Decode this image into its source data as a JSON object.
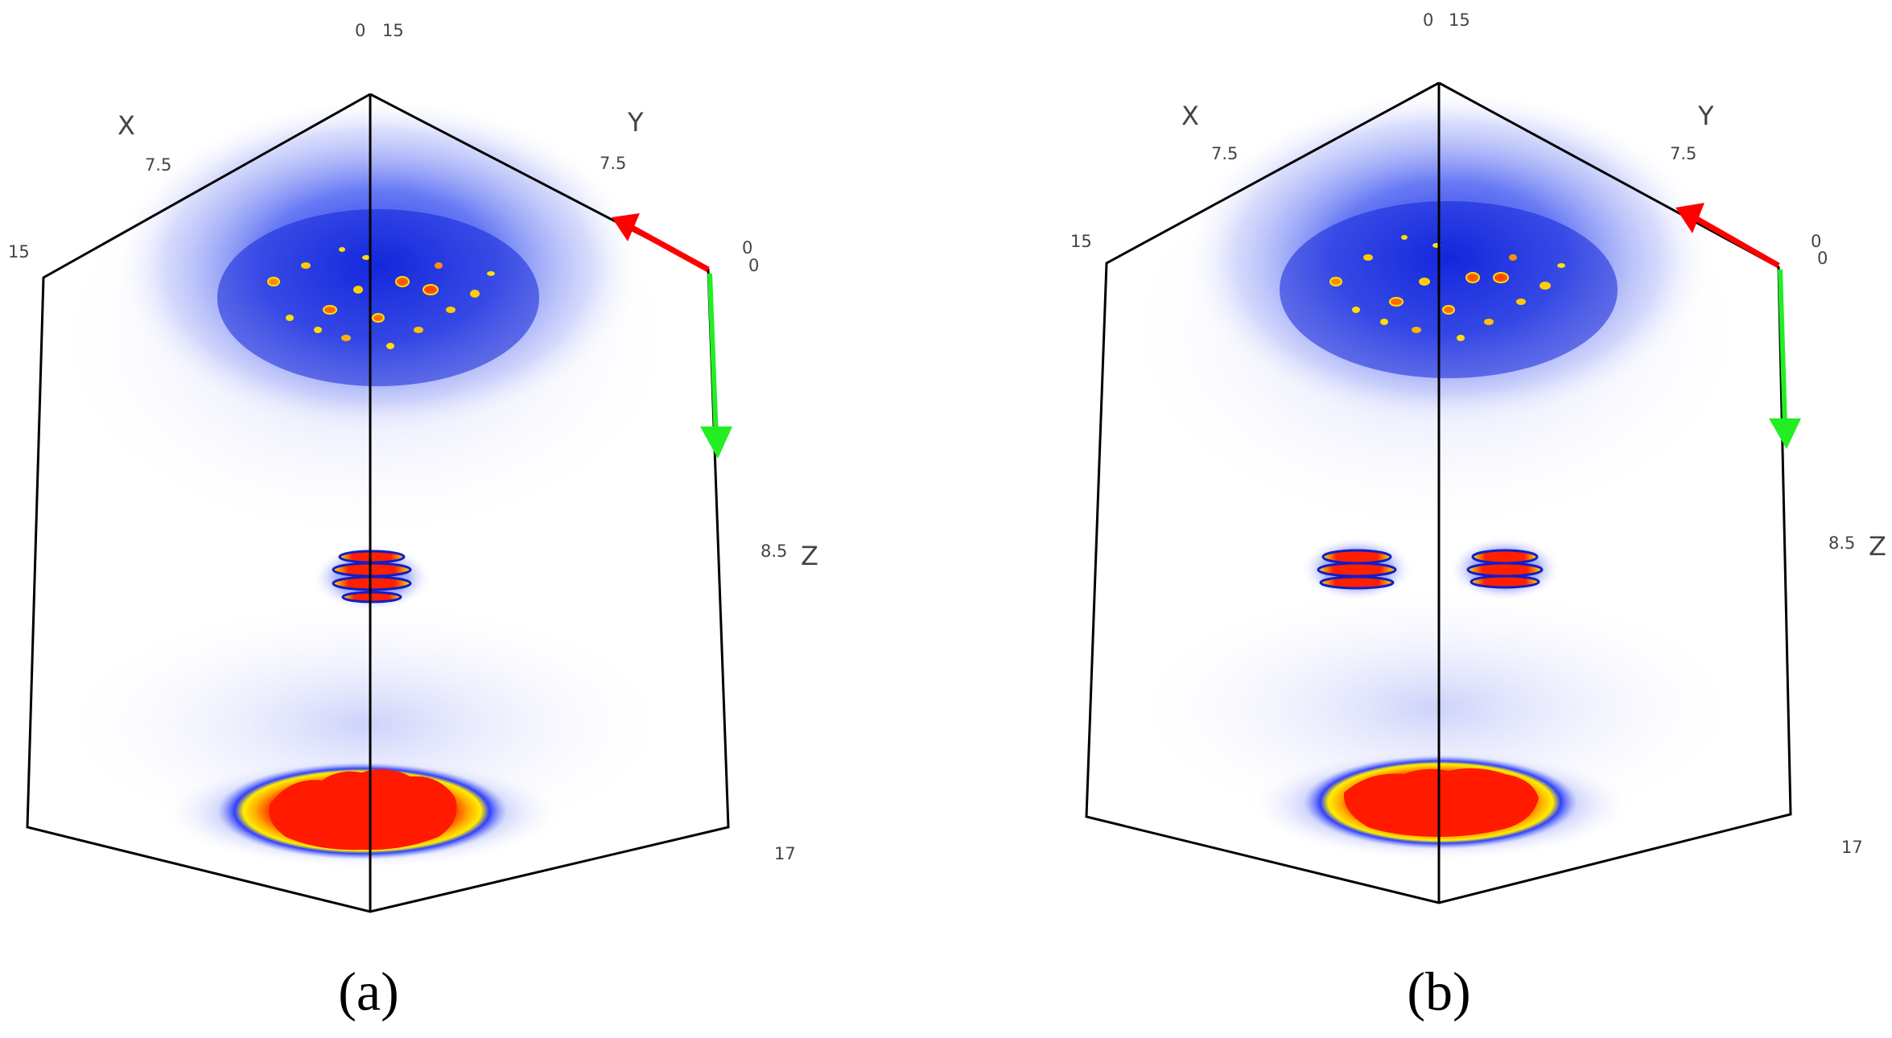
{
  "panels": [
    {
      "id": "a",
      "caption": "(a)",
      "axes": {
        "x_label": "X",
        "y_label": "Y",
        "z_label": "Z",
        "top_ticks": [
          "0",
          "15"
        ],
        "x_mid_tick": "7.5",
        "x_end_tick": "15",
        "y_mid_tick": "7.5",
        "y_end_ticks": [
          "0",
          "0"
        ],
        "z_mid_tick": "8.5",
        "z_end_tick": "17"
      },
      "focal_spots": [
        "single"
      ]
    },
    {
      "id": "b",
      "caption": "(b)",
      "axes": {
        "x_label": "X",
        "y_label": "Y",
        "z_label": "Z",
        "top_ticks": [
          "0",
          "15"
        ],
        "x_mid_tick": "7.5",
        "x_end_tick": "15",
        "y_mid_tick": "7.5",
        "y_end_ticks": [
          "0",
          "0"
        ],
        "z_mid_tick": "8.5",
        "z_end_tick": "17"
      },
      "focal_spots": [
        "left",
        "right"
      ]
    }
  ],
  "colors": {
    "cloud_blue": "#1a2ee8",
    "hot_red": "#ff1a00",
    "hot_yellow": "#ffe600",
    "arrow_red": "#ff0000",
    "arrow_green": "#22ee22",
    "frame": "#000000"
  }
}
